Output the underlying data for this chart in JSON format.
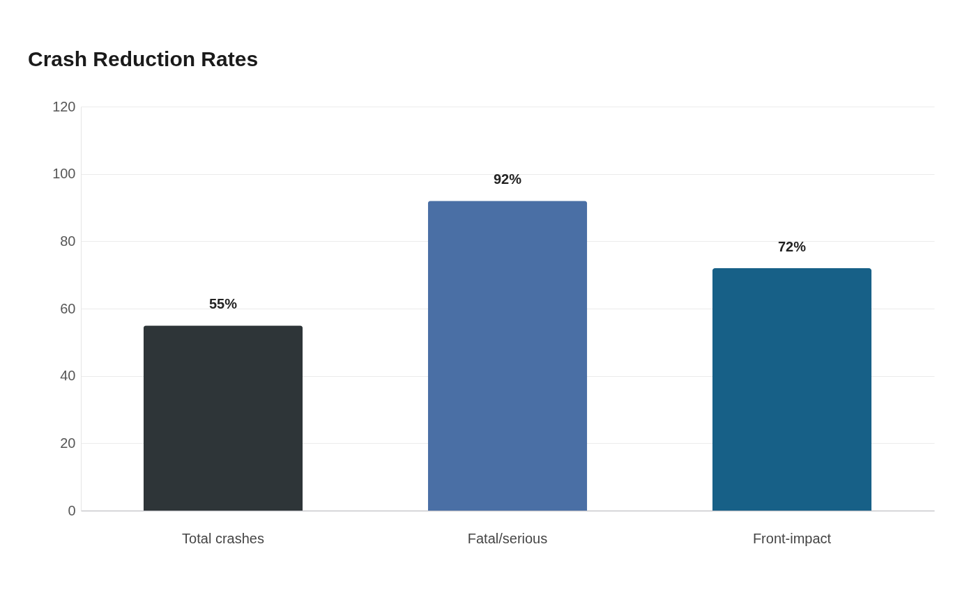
{
  "chart_data": {
    "type": "bar",
    "title": "Crash Reduction Rates",
    "categories": [
      "Total crashes",
      "Fatal/serious",
      "Front-impact"
    ],
    "values": [
      55,
      92,
      72
    ],
    "colors": [
      "#2e3538",
      "#4a6fa5",
      "#176087"
    ],
    "value_labels": [
      "55%",
      "92%",
      "72%"
    ],
    "ylim": [
      0,
      120
    ],
    "yticks": [
      0,
      20,
      40,
      60,
      80,
      100,
      120
    ],
    "grid": "y"
  }
}
